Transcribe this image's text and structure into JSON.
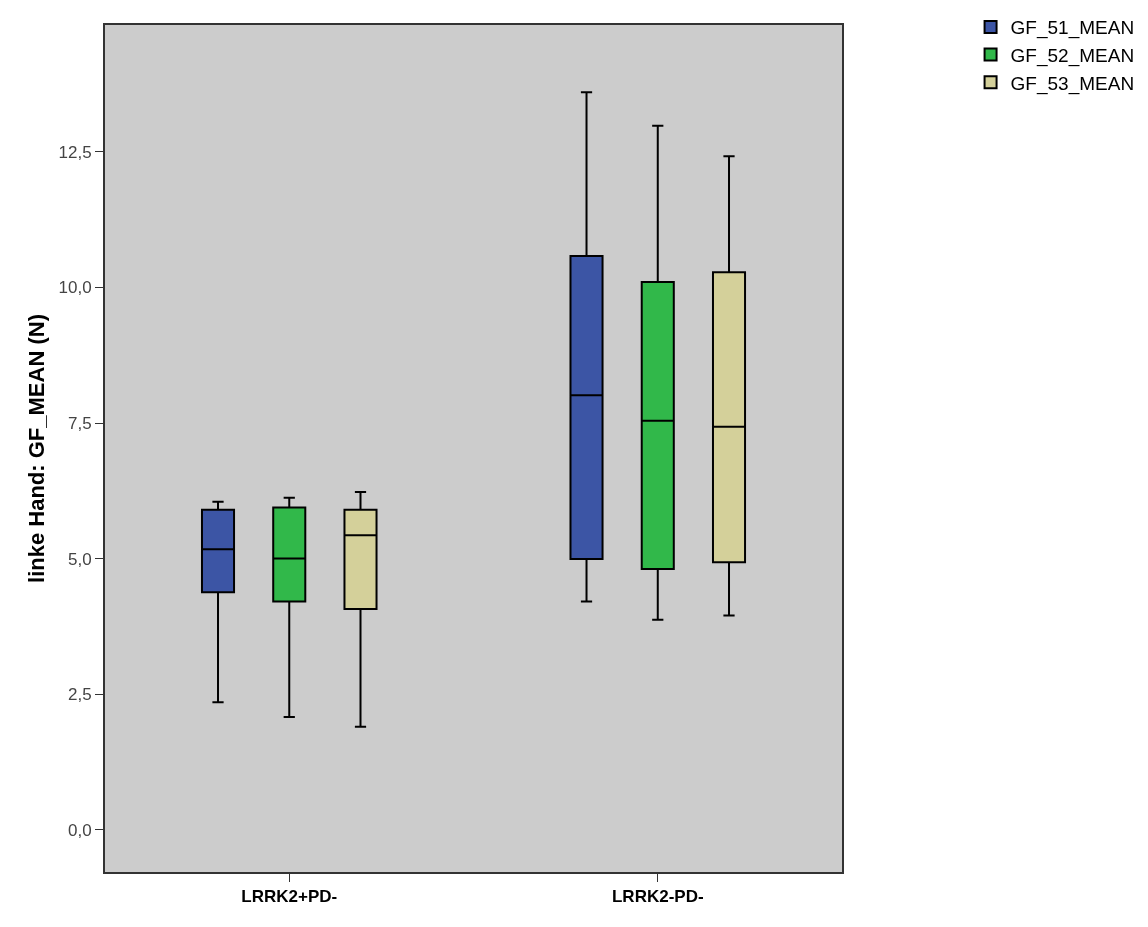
{
  "chart_data": {
    "type": "box",
    "ylabel": "linke Hand: GF_MEAN (N)",
    "categories": [
      "LRRK2+PD-",
      "LRRK2-PD-"
    ],
    "series": [
      {
        "name": "GF_51_MEAN",
        "color": "#3c55a5",
        "boxes": [
          {
            "low": 2.35,
            "q1": 4.38,
            "median": 5.17,
            "q3": 5.9,
            "high": 6.05
          },
          {
            "low": 4.21,
            "q1": 4.99,
            "median": 8.01,
            "q3": 10.58,
            "high": 13.6
          }
        ]
      },
      {
        "name": "GF_52_MEAN",
        "color": "#31b84a",
        "boxes": [
          {
            "low": 2.08,
            "q1": 4.21,
            "median": 5.0,
            "q3": 5.94,
            "high": 6.12
          },
          {
            "low": 3.87,
            "q1": 4.81,
            "median": 7.54,
            "q3": 10.1,
            "high": 12.98
          }
        ]
      },
      {
        "name": "GF_53_MEAN",
        "color": "#d4d09a",
        "boxes": [
          {
            "low": 1.9,
            "q1": 4.07,
            "median": 5.43,
            "q3": 5.9,
            "high": 6.23
          },
          {
            "low": 3.95,
            "q1": 4.93,
            "median": 7.43,
            "q3": 10.28,
            "high": 12.42
          }
        ]
      }
    ],
    "ylim": [
      -0.78,
      14.84
    ],
    "yticks": [
      {
        "value": 0,
        "label": "0,0"
      },
      {
        "value": 2.5,
        "label": "2,5"
      },
      {
        "value": 5,
        "label": "5,0"
      },
      {
        "value": 7.5,
        "label": "7,5"
      },
      {
        "value": 10,
        "label": "10,0"
      },
      {
        "value": 12.5,
        "label": "12,5"
      }
    ],
    "grid": false,
    "legend": "top right"
  }
}
